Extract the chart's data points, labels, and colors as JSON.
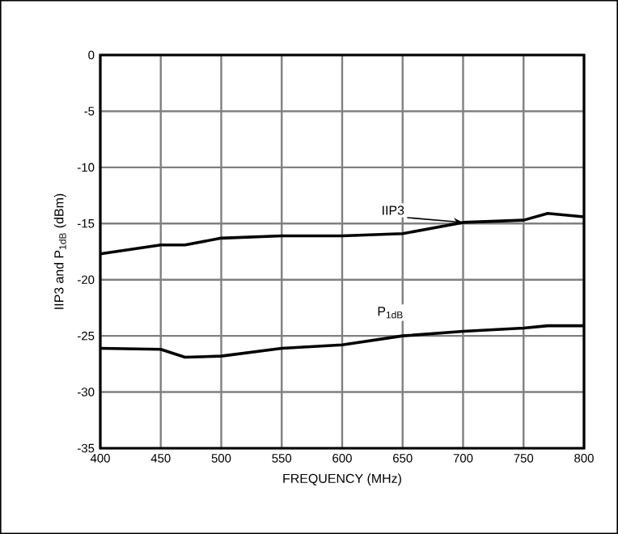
{
  "chart_data": {
    "type": "line",
    "xlabel": "FREQUENCY (MHz)",
    "ylabel": "IIP3 and P$_{1dB}$ (dBm)",
    "xlim": [
      400,
      800
    ],
    "ylim": [
      -35,
      0
    ],
    "xticks": [
      400,
      450,
      500,
      550,
      600,
      650,
      700,
      750,
      800
    ],
    "yticks": [
      -35,
      -30,
      -25,
      -20,
      -15,
      -10,
      -5,
      0
    ],
    "grid": true,
    "marker": "none",
    "line_style": "solid",
    "series": [
      {
        "name": "IIP3",
        "color": "#000000",
        "x": [
          400,
          450,
          470,
          500,
          550,
          600,
          650,
          700,
          750,
          770,
          800
        ],
        "values": [
          -17.7,
          -16.9,
          -16.9,
          -16.3,
          -16.1,
          -16.1,
          -15.9,
          -14.9,
          -14.7,
          -14.1,
          -14.4
        ]
      },
      {
        "name": "P$_{1dB}$",
        "color": "#000000",
        "x": [
          400,
          450,
          470,
          500,
          550,
          600,
          650,
          700,
          750,
          770,
          800
        ],
        "values": [
          -26.1,
          -26.2,
          -26.9,
          -26.8,
          -26.1,
          -25.8,
          -25.0,
          -24.6,
          -24.3,
          -24.1,
          -24.1
        ]
      }
    ]
  }
}
